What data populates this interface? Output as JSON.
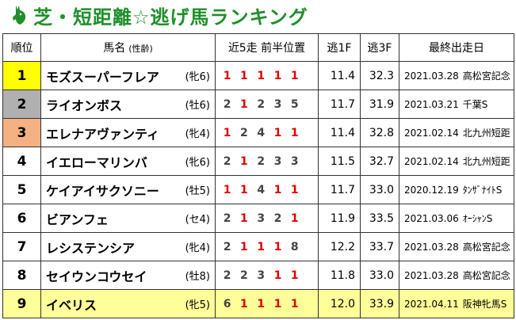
{
  "title": "芝・短距離☆逃げ馬ランキング",
  "colors": {
    "title": "#1f8f2a",
    "one": "#e00000",
    "rank1": "#ffff00",
    "rank2": "#b0b0b0",
    "rank3": "#f4b183",
    "row_highlight": "#ffff99"
  },
  "headers": {
    "rank": "順位",
    "name": "馬名",
    "sexage": "(性齢)",
    "positions": "近5走 前半位置",
    "f1": "逃1F",
    "f3": "逃3F",
    "date": "最終出走日"
  },
  "rows": [
    {
      "rank": "1",
      "name": "モズスーパーフレア",
      "sexage": "(牝6)",
      "positions": [
        "1",
        "1",
        "1",
        "1",
        "1"
      ],
      "f1": "11.4",
      "f3": "32.3",
      "date": "2021.03.28",
      "race": "高松宮記念"
    },
    {
      "rank": "2",
      "name": "ライオンボス",
      "sexage": "(牡6)",
      "positions": [
        "2",
        "1",
        "2",
        "3",
        "5"
      ],
      "f1": "11.7",
      "f3": "31.9",
      "date": "2021.03.21",
      "race": "千葉S"
    },
    {
      "rank": "3",
      "name": "エレナアヴァンティ",
      "sexage": "(牝4)",
      "positions": [
        "1",
        "2",
        "4",
        "1",
        "1"
      ],
      "f1": "11.4",
      "f3": "32.8",
      "date": "2021.02.14",
      "race": "北九州短距"
    },
    {
      "rank": "4",
      "name": "イエローマリンバ",
      "sexage": "(牝6)",
      "positions": [
        "2",
        "1",
        "2",
        "3",
        "3"
      ],
      "f1": "11.5",
      "f3": "32.7",
      "date": "2021.02.14",
      "race": "北九州短距"
    },
    {
      "rank": "5",
      "name": "ケイアイサクソニー",
      "sexage": "(牡5)",
      "positions": [
        "1",
        "1",
        "4",
        "1",
        "1"
      ],
      "f1": "11.7",
      "f3": "33.0",
      "date": "2020.12.19",
      "race": "ﾀﾝｻﾞﾅｲﾄS"
    },
    {
      "rank": "6",
      "name": "ビアンフェ",
      "sexage": "(セ4)",
      "positions": [
        "2",
        "1",
        "3",
        "2",
        "1"
      ],
      "f1": "11.9",
      "f3": "33.5",
      "date": "2021.03.06",
      "race": "ｵｰｼｬﾝS"
    },
    {
      "rank": "7",
      "name": "レシステンシア",
      "sexage": "(牝4)",
      "positions": [
        "2",
        "1",
        "1",
        "1",
        "8"
      ],
      "f1": "12.2",
      "f3": "33.7",
      "date": "2021.03.28",
      "race": "高松宮記念"
    },
    {
      "rank": "8",
      "name": "セイウンコウセイ",
      "sexage": "(牡8)",
      "positions": [
        "2",
        "2",
        "3",
        "1",
        "1"
      ],
      "f1": "11.8",
      "f3": "33.0",
      "date": "2021.03.28",
      "race": "高松宮記念"
    },
    {
      "rank": "9",
      "name": "イベリス",
      "sexage": "(牝5)",
      "positions": [
        "6",
        "1",
        "1",
        "1",
        "1"
      ],
      "f1": "12.0",
      "f3": "33.9",
      "date": "2021.04.11",
      "race": "阪神牝馬S"
    }
  ]
}
